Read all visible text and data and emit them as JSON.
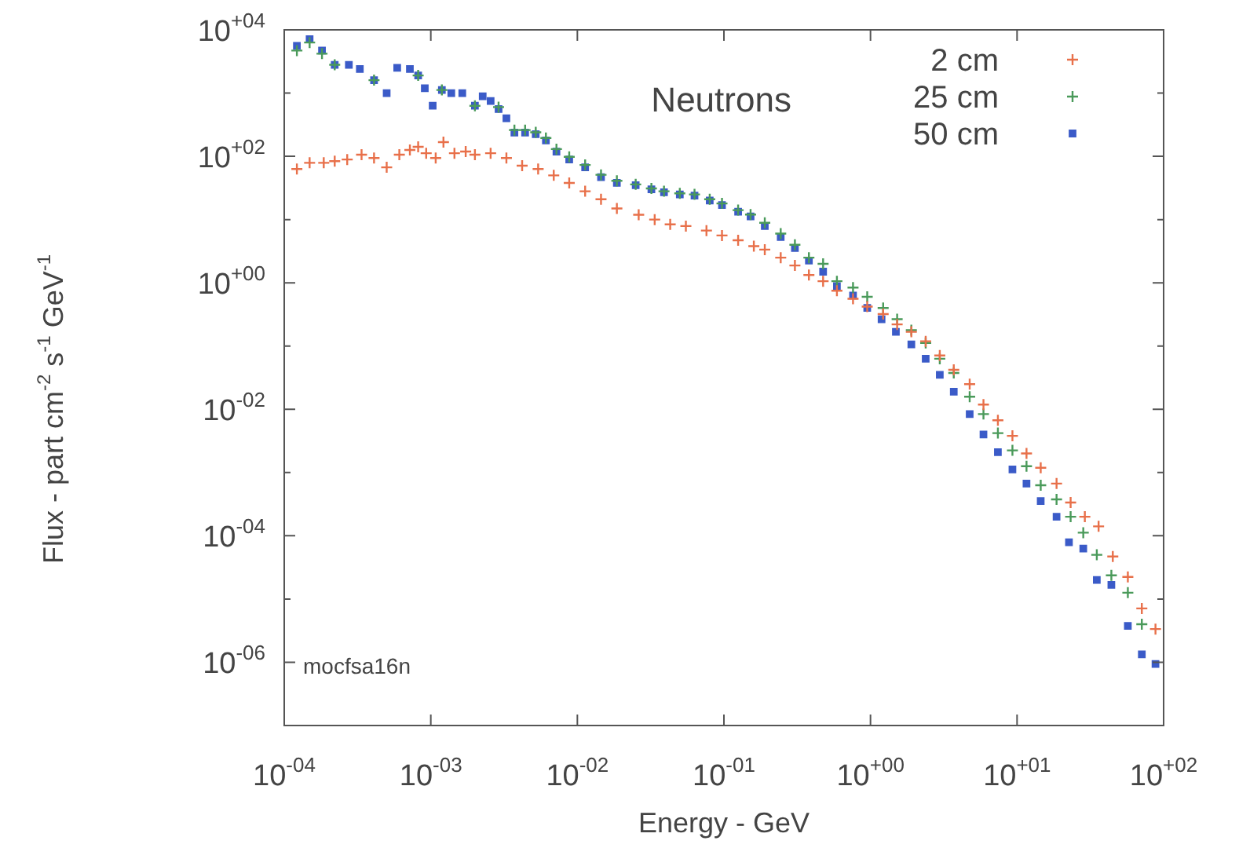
{
  "chart_data": {
    "type": "scatter",
    "title": "Neutrons",
    "xlabel": "Energy - GeV",
    "ylabel": "Flux - part cm$^{-2}$ s$^{-1}$ GeV$^{-1}$",
    "annotations": [
      "mocfsa16n"
    ],
    "log": "xy",
    "legend": "top right",
    "grid": false,
    "xlim": [
      0.0001,
      100
    ],
    "ylim": [
      1e-07,
      10000
    ],
    "xticks": [
      {
        "value": 0.0001,
        "label": "10$^{-04}$"
      },
      {
        "value": 0.001,
        "label": "10$^{-03}$"
      },
      {
        "value": 0.01,
        "label": "10$^{-02}$"
      },
      {
        "value": 0.1,
        "label": "10$^{-01}$"
      },
      {
        "value": 1,
        "label": "10$^{+00}$"
      },
      {
        "value": 10,
        "label": "10$^{+01}$"
      },
      {
        "value": 100,
        "label": "10$^{+02}$"
      }
    ],
    "yticks": [
      {
        "value": 1e-07,
        "label": null
      },
      {
        "value": 1e-06,
        "label": "10$^{-06}$"
      },
      {
        "value": 1e-05,
        "label": null
      },
      {
        "value": 0.0001,
        "label": "10$^{-04}$"
      },
      {
        "value": 0.001,
        "label": null
      },
      {
        "value": 0.01,
        "label": "10$^{-02}$"
      },
      {
        "value": 0.1,
        "label": null
      },
      {
        "value": 1,
        "label": "10$^{+00}$"
      },
      {
        "value": 10,
        "label": null
      },
      {
        "value": 100,
        "label": "10$^{+02}$"
      },
      {
        "value": 1000,
        "label": null
      },
      {
        "value": 10000,
        "label": "10$^{+04}$"
      }
    ],
    "series": [
      {
        "name": "2 cm",
        "color": "#e8704a",
        "marker": "cross",
        "x": [
          0.000122,
          0.000149,
          0.000186,
          0.000221,
          0.000269,
          0.000337,
          0.00041,
          0.0005,
          0.00061,
          0.00072,
          0.00082,
          0.00093,
          0.00108,
          0.00122,
          0.00145,
          0.00173,
          0.002,
          0.00256,
          0.00328,
          0.0042,
          0.0054,
          0.0069,
          0.0088,
          0.0113,
          0.0145,
          0.0186,
          0.0262,
          0.0337,
          0.043,
          0.055,
          0.076,
          0.097,
          0.125,
          0.16,
          0.19,
          0.244,
          0.305,
          0.38,
          0.475,
          0.59,
          0.76,
          0.95,
          1.22,
          1.52,
          1.9,
          2.38,
          2.97,
          3.7,
          4.75,
          5.9,
          7.4,
          9.3,
          11.6,
          14.5,
          18.6,
          23.2,
          29,
          36,
          45,
          57,
          71,
          88
        ],
        "values": [
          63,
          79,
          79,
          84,
          89,
          106,
          94,
          67,
          106,
          126,
          141,
          112,
          94,
          168,
          112,
          119,
          106,
          112,
          94,
          71,
          63,
          50,
          38,
          28,
          21,
          15,
          11.9,
          10,
          8.4,
          7.9,
          6.7,
          5.6,
          4.7,
          3.8,
          3.35,
          2.5,
          1.88,
          1.33,
          1.06,
          0.75,
          0.56,
          0.42,
          0.32,
          0.22,
          0.168,
          0.119,
          0.071,
          0.042,
          0.025,
          0.0119,
          0.0067,
          0.0038,
          0.002,
          0.00119,
          0.00067,
          0.000335,
          0.0002,
          0.000141,
          4.7e-05,
          2.24e-05,
          7.1e-06,
          3.35e-06
        ]
      },
      {
        "name": "25 cm",
        "color": "#4a9a5a",
        "marker": "cross",
        "x": [
          0.000122,
          0.000149,
          0.000181,
          0.000221,
          0.00041,
          0.00082,
          0.00119,
          0.002,
          0.0029,
          0.00372,
          0.0044,
          0.0052,
          0.0061,
          0.0072,
          0.0088,
          0.0113,
          0.0145,
          0.0186,
          0.025,
          0.032,
          0.039,
          0.05,
          0.063,
          0.08,
          0.097,
          0.125,
          0.152,
          0.19,
          0.244,
          0.305,
          0.38,
          0.475,
          0.59,
          0.76,
          0.95,
          1.22,
          1.52,
          1.9,
          2.38,
          2.97,
          3.7,
          4.75,
          5.9,
          7.4,
          9.3,
          11.6,
          14.5,
          18.6,
          23.2,
          28.3,
          35,
          44,
          57,
          71
        ],
        "values": [
          4700,
          6300,
          4200,
          2800,
          1600,
          1900,
          1120,
          630,
          600,
          260,
          260,
          240,
          195,
          130,
          98,
          73,
          51,
          41,
          36,
          31,
          28,
          26,
          25,
          21,
          18,
          14.1,
          12,
          8.9,
          6,
          4,
          2.5,
          2.0,
          1.06,
          0.84,
          0.6,
          0.4,
          0.266,
          0.178,
          0.112,
          0.063,
          0.0376,
          0.0158,
          0.0084,
          0.0042,
          0.00224,
          0.00126,
          0.00063,
          0.000376,
          0.0002,
          0.000112,
          5e-05,
          2.37e-05,
          1.26e-05,
          4e-06
        ]
      },
      {
        "name": "50 cm",
        "color": "#3b5bc8",
        "marker": "square",
        "x": [
          0.000122,
          0.000149,
          0.000181,
          0.000221,
          0.000276,
          0.000328,
          0.00041,
          0.0005,
          0.00059,
          0.00072,
          0.00082,
          0.00091,
          0.00103,
          0.00119,
          0.00138,
          0.00164,
          0.002,
          0.00226,
          0.00256,
          0.0029,
          0.00328,
          0.00372,
          0.0044,
          0.0052,
          0.0061,
          0.0072,
          0.0088,
          0.0113,
          0.0145,
          0.0186,
          0.025,
          0.032,
          0.039,
          0.05,
          0.063,
          0.08,
          0.097,
          0.125,
          0.152,
          0.19,
          0.244,
          0.305,
          0.38,
          0.475,
          0.59,
          0.76,
          0.95,
          1.19,
          1.49,
          1.9,
          2.38,
          2.97,
          3.7,
          4.75,
          5.9,
          7.4,
          9.3,
          11.6,
          14.5,
          18.6,
          22.6,
          28.3,
          35,
          44,
          57,
          71,
          88
        ],
        "values": [
          5600,
          7100,
          4700,
          2800,
          2800,
          2400,
          1600,
          1000,
          2500,
          2400,
          1900,
          1190,
          630,
          1120,
          1000,
          1000,
          630,
          890,
          750,
          560,
          400,
          237,
          237,
          224,
          178,
          119,
          89,
          67,
          47,
          38,
          35,
          30,
          27,
          25,
          24,
          20,
          17,
          13.3,
          11.2,
          7.9,
          5.3,
          3.55,
          2.24,
          1.5,
          0.89,
          0.63,
          0.4,
          0.266,
          0.168,
          0.106,
          0.063,
          0.035,
          0.019,
          0.0084,
          0.004,
          0.0021,
          0.00112,
          0.00067,
          0.000355,
          0.0002,
          7.9e-05,
          6.3e-05,
          2e-05,
          1.68e-05,
          3.76e-06,
          1.33e-06,
          9.4e-07
        ]
      }
    ]
  }
}
